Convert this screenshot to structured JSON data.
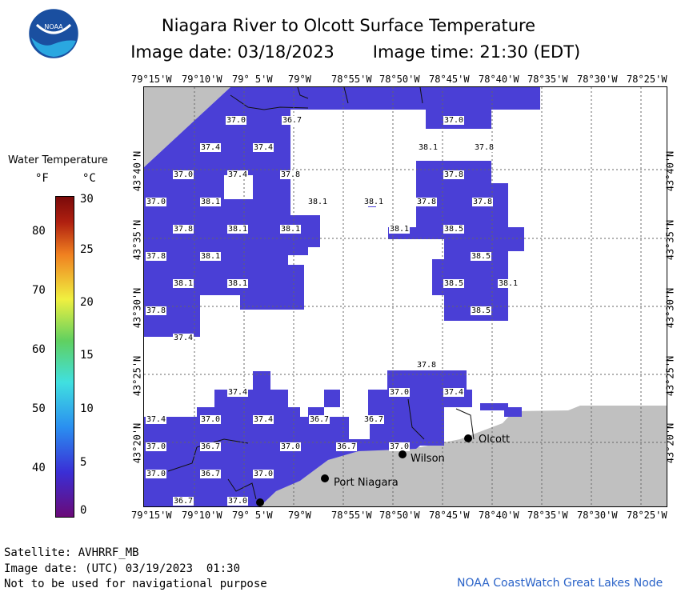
{
  "title": "Niagara River to Olcott Surface Temperature",
  "image_date": "Image date: 03/18/2023",
  "image_time": "Image time: 21:30 (EDT)",
  "logo_text": "NOAA",
  "x_ticks": [
    "79°15'W",
    "79°10'W",
    "79° 5'W",
    "79°W",
    "78°55'W",
    "78°50'W",
    "78°45'W",
    "78°40'W",
    "78°35'W",
    "78°30'W",
    "78°25'W"
  ],
  "y_ticks": [
    "43°40'N",
    "43°35'N",
    "43°30'N",
    "43°25'N",
    "43°20'N"
  ],
  "legend": {
    "title": "Water Temperature",
    "f_unit": "°F",
    "c_unit": "°C",
    "f_ticks": [
      "80",
      "70",
      "60",
      "50",
      "40"
    ],
    "c_ticks": [
      "30",
      "25",
      "20",
      "15",
      "10",
      "5",
      "0"
    ]
  },
  "cities": {
    "olcott": "Olcott",
    "wilson": "Wilson",
    "port_niagara": "Port Niagara"
  },
  "temperature_labels": [
    "37.0",
    "36.7",
    "37.0",
    "37.4",
    "37.4",
    "38.1",
    "37.8",
    "37.0",
    "37.4",
    "37.8",
    "37.8",
    "37.0",
    "38.1",
    "38.1",
    "38.1",
    "37.8",
    "37.8",
    "37.8",
    "38.1",
    "38.1",
    "38.1",
    "38.5",
    "37.8",
    "38.1",
    "38.5",
    "38.1",
    "38.1",
    "38.5",
    "38.1",
    "37.8",
    "38.5",
    "37.4",
    "37.8",
    "37.4",
    "37.0",
    "37.4",
    "37.4",
    "37.0",
    "37.4",
    "36.7",
    "36.7",
    "37.0",
    "36.7",
    "37.0",
    "36.7",
    "37.0",
    "37.0",
    "36.7",
    "37.0",
    "36.7",
    "37.0"
  ],
  "footer": {
    "satellite": "Satellite: AVHRRF_MB",
    "utc_date": "Image date: (UTC) 03/19/2023  01:30",
    "disclaimer": "Not to be used for navigational purpose",
    "credit": "NOAA CoastWatch Great Lakes Node"
  },
  "colors": {
    "water": "#4a3fd6",
    "land": "#c0c0c0",
    "legend_gradient": [
      "#6a0a78",
      "#3a2fd6",
      "#2a8ff0",
      "#40e0e0",
      "#60d060",
      "#f0f040",
      "#f08020",
      "#b02010",
      "#7a0a0a"
    ]
  }
}
